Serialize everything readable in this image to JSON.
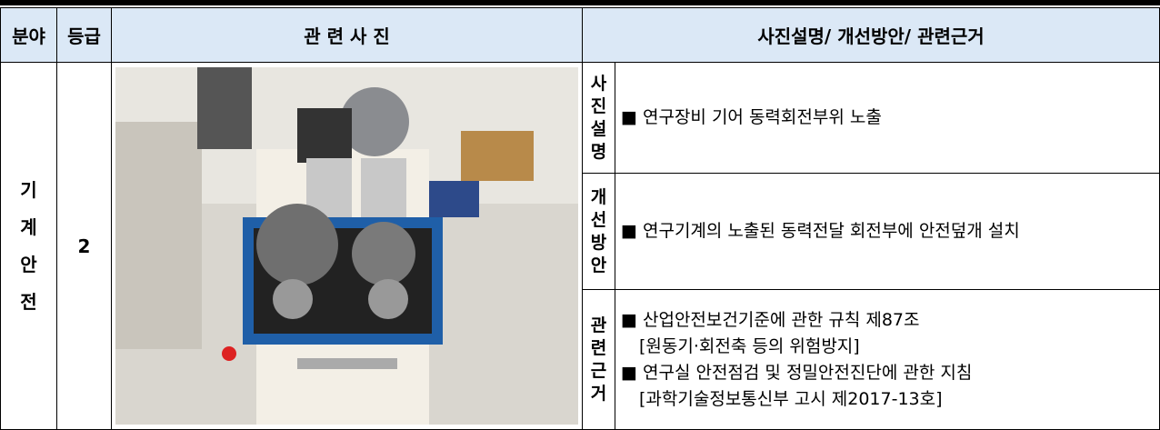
{
  "header": [
    "분야",
    "등급",
    "관 련 사 진",
    "사진설명/ 개선방안/ 관련근거"
  ],
  "row": {
    "field": "기계안전",
    "grade": "2",
    "sections": [
      {
        "label": "사진설명",
        "lines": [
          "■ 연구장비 기어 동력회전부위 노출"
        ]
      },
      {
        "label": "개선방안",
        "lines": [
          "■ 연구기계의 노출된 동력전달 회전부에 안전덮개 설치"
        ]
      },
      {
        "label": "관련근거",
        "lines": [
          "■ 산업안전보건기준에 관한 규칙 제87조",
          "[원동기·회전축 등의 위험방지]",
          "■ 연구실 안전점검 및 정밀안전진단에 관한 지침",
          "[과학기술정보통신부 고시 제2017-13호]"
        ]
      }
    ]
  }
}
